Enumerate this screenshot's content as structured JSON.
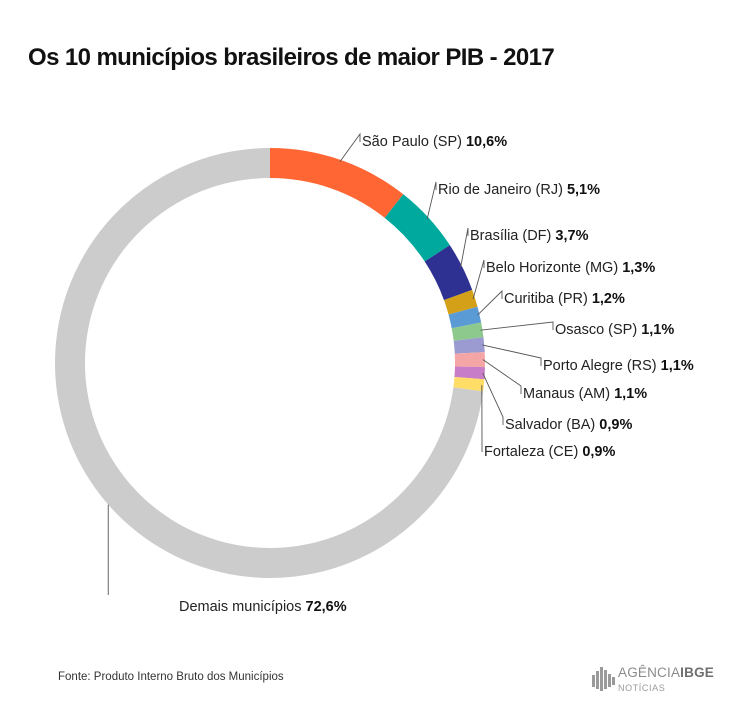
{
  "header": {
    "title": "Os 10 municípios brasileiros de maior PIB - 2017"
  },
  "chart_data": {
    "type": "pie",
    "donut": true,
    "title": "Os 10 municípios brasileiros de maior PIB - 2017",
    "slices": [
      {
        "label": "São Paulo (SP)",
        "value": 10.6,
        "value_label": "10,6%",
        "color": "#ff6633"
      },
      {
        "label": "Rio de Janeiro (RJ)",
        "value": 5.1,
        "value_label": "5,1%",
        "color": "#00a99d"
      },
      {
        "label": "Brasília (DF)",
        "value": 3.7,
        "value_label": "3,7%",
        "color": "#2e3192"
      },
      {
        "label": "Belo Horizonte (MG)",
        "value": 1.3,
        "value_label": "1,3%",
        "color": "#d4a017"
      },
      {
        "label": "Curitiba (PR)",
        "value": 1.2,
        "value_label": "1,2%",
        "color": "#5b9bd5"
      },
      {
        "label": "Osasco (SP)",
        "value": 1.1,
        "value_label": "1,1%",
        "color": "#8dc98d"
      },
      {
        "label": "Porto Alegre (RS)",
        "value": 1.1,
        "value_label": "1,1%",
        "color": "#9b9bd1"
      },
      {
        "label": "Manaus (AM)",
        "value": 1.1,
        "value_label": "1,1%",
        "color": "#f4a6a6"
      },
      {
        "label": "Salvador (BA)",
        "value": 0.9,
        "value_label": "0,9%",
        "color": "#c77dc7"
      },
      {
        "label": "Fortaleza (CE)",
        "value": 0.9,
        "value_label": "0,9%",
        "color": "#ffdd66"
      },
      {
        "label": "Demais municípios",
        "value": 72.6,
        "value_label": "72,6%",
        "color": "#cccccc"
      }
    ]
  },
  "footer": {
    "source": "Fonte: Produto Interno Bruto dos Municípios",
    "logo_brand": "AGÊNCIA",
    "logo_brand_bold": "IBGE",
    "logo_sub": "NOTÍCIAS"
  }
}
